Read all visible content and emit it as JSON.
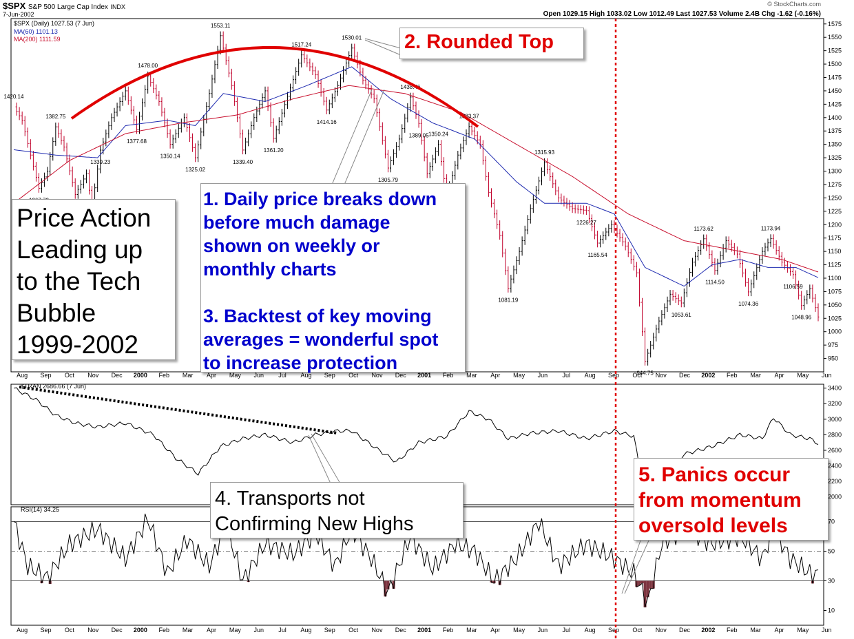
{
  "header": {
    "symbol": "$SPX",
    "description": "S&P 500 Large Cap Index",
    "exchange": "INDX",
    "date": "7-Jun-2002",
    "copyright": "© StockCharts.com",
    "quote": "Open 1029.15  High 1033.02  Low 1012.49  Last 1027.53  Volume 2.4B  Chg -1.62 (-0.16%)"
  },
  "legend": {
    "price": "$SPX (Daily) 1027.53 (7 Jun)",
    "ma60": "MA(60) 1101.13",
    "ma200": "MA(200) 1111.59",
    "tran": "$TRAN 2686.66 (7 Jun)",
    "rsi": "RSI(14) 34.25"
  },
  "colors": {
    "price_up": "#000000",
    "price_down": "#c0002a",
    "ma60": "#1f2bb0",
    "ma200": "#c8102e",
    "annotation_red": "#e00000",
    "annotation_blue": "#0000cc",
    "rsi_fill": "#7d3540"
  },
  "annotations": {
    "title": "Price Action\nLeading up\nto the Tech\nBubble\n1999-2002",
    "rounded_top": "2. Rounded Top",
    "daily_price": "1. Daily price breaks down\nbefore much damage\nshown on weekly or\nmonthly charts\n\n3. Backtest of key moving\naverages = wonderful spot\nto increase protection",
    "transports": "4. Transports not\nConfirming New Highs",
    "panics": "5. Panics occur\nfrom momentum\noversold levels"
  },
  "chart_data": [
    {
      "type": "candlestick",
      "title": "$SPX S&P 500 Large Cap Index",
      "x_ticks": [
        "Aug",
        "Sep",
        "Oct",
        "Nov",
        "Dec",
        "2000",
        "Feb",
        "Mar",
        "Apr",
        "May",
        "Jun",
        "Jul",
        "Aug",
        "Sep",
        "Oct",
        "Nov",
        "Dec",
        "2001",
        "Feb",
        "Mar",
        "Apr",
        "May",
        "Jun",
        "Jul",
        "Aug",
        "Sep",
        "Oct",
        "Nov",
        "Dec",
        "2002",
        "Feb",
        "Mar",
        "Apr",
        "May",
        "Jun"
      ],
      "y_ticks": [
        950,
        975,
        1000,
        1025,
        1050,
        1075,
        1100,
        1125,
        1150,
        1175,
        1200,
        1225,
        1250,
        1275,
        1300,
        1325,
        1350,
        1375,
        1400,
        1425,
        1450,
        1475,
        1500,
        1525,
        1550,
        1575
      ],
      "ylim": [
        925,
        1585
      ],
      "grid": false,
      "series": [
        {
          "name": "$SPX",
          "points": [
            [
              0,
              1420.14
            ],
            [
              3,
              1395
            ],
            [
              6,
              1330
            ],
            [
              9,
              1267.73
            ],
            [
              12,
              1300
            ],
            [
              15,
              1382.75
            ],
            [
              18,
              1345
            ],
            [
              22,
              1256.29
            ],
            [
              26,
              1295
            ],
            [
              28,
              1233.66
            ],
            [
              31,
              1339.23
            ],
            [
              35,
              1400
            ],
            [
              40,
              1450
            ],
            [
              44,
              1377.68
            ],
            [
              48,
              1478
            ],
            [
              52,
              1430
            ],
            [
              56,
              1350.14
            ],
            [
              61,
              1400
            ],
            [
              65,
              1325.02
            ],
            [
              70,
              1445
            ],
            [
              74,
              1553.11
            ],
            [
              78,
              1460
            ],
            [
              82,
              1339.4
            ],
            [
              86,
              1400
            ],
            [
              90,
              1450
            ],
            [
              93,
              1361.2
            ],
            [
              98,
              1440
            ],
            [
              103,
              1517.24
            ],
            [
              108,
              1480
            ],
            [
              112,
              1414.16
            ],
            [
              116,
              1460
            ],
            [
              121,
              1530.01
            ],
            [
              125,
              1470
            ],
            [
              129,
              1435
            ],
            [
              134,
              1305.79
            ],
            [
              138,
              1360
            ],
            [
              142,
              1438.46
            ],
            [
              145,
              1389.05
            ],
            [
              148,
              1294.9
            ],
            [
              152,
              1350.24
            ],
            [
              155,
              1254.07
            ],
            [
              159,
              1330
            ],
            [
              163,
              1383.37
            ],
            [
              167,
              1350
            ],
            [
              170,
              1260
            ],
            [
              174,
              1180
            ],
            [
              177,
              1081.19
            ],
            [
              181,
              1150
            ],
            [
              185,
              1230
            ],
            [
              190,
              1315.93
            ],
            [
              195,
              1250
            ],
            [
              200,
              1230
            ],
            [
              205,
              1226.27
            ],
            [
              209,
              1165.54
            ],
            [
              214,
              1200
            ],
            [
              219,
              1160
            ],
            [
              223,
              1110
            ],
            [
              226,
              944.75
            ],
            [
              231,
              1020
            ],
            [
              235,
              1070
            ],
            [
              239,
              1053.61
            ],
            [
              243,
              1130
            ],
            [
              247,
              1173.62
            ],
            [
              251,
              1114.5
            ],
            [
              255,
              1170
            ],
            [
              259,
              1145
            ],
            [
              263,
              1074.36
            ],
            [
              268,
              1150
            ],
            [
              271,
              1173.94
            ],
            [
              275,
              1130
            ],
            [
              279,
              1106.59
            ],
            [
              282,
              1048.96
            ],
            [
              285,
              1080
            ],
            [
              288,
              1027.53
            ]
          ]
        },
        {
          "name": "MA(60)",
          "points": [
            [
              0,
              1340
            ],
            [
              15,
              1330
            ],
            [
              30,
              1325
            ],
            [
              40,
              1385
            ],
            [
              55,
              1395
            ],
            [
              65,
              1385
            ],
            [
              75,
              1445
            ],
            [
              90,
              1430
            ],
            [
              105,
              1460
            ],
            [
              121,
              1495
            ],
            [
              135,
              1435
            ],
            [
              150,
              1390
            ],
            [
              165,
              1360
            ],
            [
              180,
              1280
            ],
            [
              190,
              1240
            ],
            [
              205,
              1240
            ],
            [
              215,
              1220
            ],
            [
              226,
              1120
            ],
            [
              240,
              1085
            ],
            [
              250,
              1125
            ],
            [
              260,
              1135
            ],
            [
              270,
              1120
            ],
            [
              280,
              1120
            ],
            [
              288,
              1101.13
            ]
          ]
        },
        {
          "name": "MA(200)",
          "points": [
            [
              0,
              1240
            ],
            [
              20,
              1320
            ],
            [
              40,
              1370
            ],
            [
              60,
              1390
            ],
            [
              80,
              1405
            ],
            [
              100,
              1435
            ],
            [
              120,
              1460
            ],
            [
              140,
              1445
            ],
            [
              160,
              1410
            ],
            [
              180,
              1350
            ],
            [
              200,
              1290
            ],
            [
              220,
              1220
            ],
            [
              240,
              1170
            ],
            [
              260,
              1150
            ],
            [
              275,
              1135
            ],
            [
              288,
              1111.59
            ]
          ]
        }
      ]
    },
    {
      "type": "line",
      "title": "$TRAN 2686.66 (7 Jun)",
      "y_ticks": [
        2000,
        2200,
        2400,
        2600,
        2800,
        3000,
        3200,
        3400
      ],
      "ylim": [
        1900,
        3450
      ],
      "series": [
        {
          "name": "$TRAN",
          "points": [
            [
              0,
              3400
            ],
            [
              8,
              3250
            ],
            [
              15,
              3050
            ],
            [
              22,
              2950
            ],
            [
              30,
              2900
            ],
            [
              40,
              2950
            ],
            [
              50,
              2800
            ],
            [
              58,
              2500
            ],
            [
              66,
              2300
            ],
            [
              74,
              2650
            ],
            [
              82,
              2750
            ],
            [
              90,
              2800
            ],
            [
              100,
              2700
            ],
            [
              108,
              2800
            ],
            [
              116,
              2850
            ],
            [
              121,
              2850
            ],
            [
              130,
              2620
            ],
            [
              137,
              2450
            ],
            [
              145,
              2700
            ],
            [
              155,
              2780
            ],
            [
              163,
              3100
            ],
            [
              170,
              3000
            ],
            [
              177,
              2750
            ],
            [
              185,
              2820
            ],
            [
              195,
              2850
            ],
            [
              205,
              2750
            ],
            [
              215,
              2850
            ],
            [
              222,
              2780
            ],
            [
              226,
              2000
            ],
            [
              232,
              2250
            ],
            [
              240,
              2550
            ],
            [
              250,
              2650
            ],
            [
              260,
              2800
            ],
            [
              268,
              2750
            ],
            [
              272,
              3020
            ],
            [
              278,
              2800
            ],
            [
              285,
              2750
            ],
            [
              288,
              2686.66
            ]
          ]
        }
      ]
    },
    {
      "type": "line",
      "title": "RSI(14) 34.25",
      "y_ticks": [
        10,
        30,
        50,
        70
      ],
      "ylim": [
        0,
        80
      ],
      "series": [
        {
          "name": "RSI(14)",
          "points": [
            [
              0,
              70
            ],
            [
              5,
              40
            ],
            [
              12,
              32
            ],
            [
              20,
              55
            ],
            [
              30,
              65
            ],
            [
              40,
              45
            ],
            [
              48,
              72
            ],
            [
              55,
              35
            ],
            [
              62,
              58
            ],
            [
              70,
              40
            ],
            [
              76,
              68
            ],
            [
              82,
              30
            ],
            [
              90,
              55
            ],
            [
              100,
              48
            ],
            [
              108,
              62
            ],
            [
              115,
              40
            ],
            [
              121,
              65
            ],
            [
              128,
              45
            ],
            [
              134,
              22
            ],
            [
              142,
              60
            ],
            [
              150,
              38
            ],
            [
              158,
              55
            ],
            [
              165,
              50
            ],
            [
              172,
              30
            ],
            [
              180,
              45
            ],
            [
              188,
              70
            ],
            [
              195,
              40
            ],
            [
              205,
              55
            ],
            [
              215,
              45
            ],
            [
              222,
              35
            ],
            [
              227,
              15
            ],
            [
              232,
              55
            ],
            [
              240,
              65
            ],
            [
              250,
              55
            ],
            [
              260,
              60
            ],
            [
              268,
              45
            ],
            [
              272,
              65
            ],
            [
              278,
              45
            ],
            [
              285,
              35
            ],
            [
              288,
              34.25
            ]
          ]
        }
      ]
    }
  ]
}
